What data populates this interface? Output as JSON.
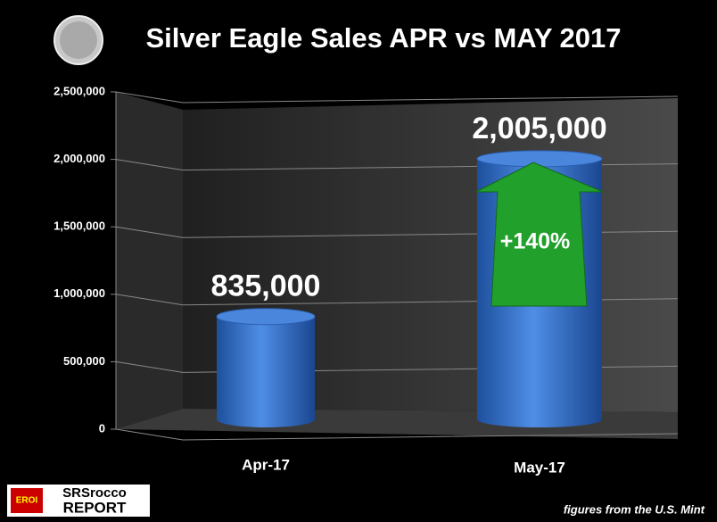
{
  "chart_data": {
    "type": "bar",
    "title": "Silver Eagle Sales APR vs MAY 2017",
    "categories": [
      "Apr-17",
      "May-17"
    ],
    "values": [
      835000,
      2005000
    ],
    "value_labels": [
      "835,000",
      "2,005,000"
    ],
    "color": "#3a78d0",
    "ylim": [
      0,
      2500000
    ],
    "yticks": [
      0,
      {
        "value": 500000,
        "label": "500,000"
      },
      {
        "value": 1000000,
        "label": "1,000,000"
      },
      {
        "value": 1500000,
        "label": "1,500,000"
      },
      {
        "value": 2000000,
        "label": "2,000,000"
      },
      {
        "value": 2500000,
        "label": "2,500,000"
      }
    ],
    "grid": true,
    "annotation": "+140%",
    "source": "figures from the U.S. Mint",
    "logo": {
      "badge": "EROI",
      "name": "SRSrocco",
      "sub": "REPORT"
    }
  }
}
